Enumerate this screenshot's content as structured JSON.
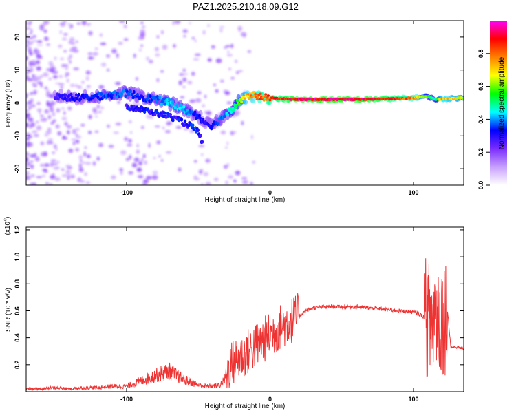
{
  "figure_title": "PAZ1.2025.210.18.09.G12",
  "chart_data": [
    {
      "type": "heatmap",
      "xlabel": "Height of straight line (km)",
      "ylabel": "Frequency (Hz)",
      "xlim": [
        -170,
        135
      ],
      "ylim": [
        -25,
        25
      ],
      "x_ticks": [
        -100,
        0,
        100
      ],
      "y_ticks": [
        -20,
        -10,
        0,
        10,
        20
      ],
      "colorbar": {
        "label": "Normalized spectral amplitude",
        "range": [
          0,
          1
        ],
        "ticks": [
          "0.0",
          "0.2",
          "0.4",
          "0.6",
          "0.8"
        ],
        "colors": [
          "#ffffff",
          "#c8a0ff",
          "#7a2cff",
          "#0000ff",
          "#00ffff",
          "#00ff00",
          "#ffff00",
          "#ff8000",
          "#ff0000",
          "#ff00ff"
        ]
      },
      "ridge": {
        "x": [
          -150,
          -130,
          -110,
          -100,
          -90,
          -80,
          -70,
          -60,
          -50,
          -45,
          -40,
          -35,
          -30,
          -25,
          -20,
          -15,
          -10,
          0,
          10,
          20,
          40,
          60,
          80,
          100,
          110,
          115,
          120,
          135
        ],
        "y": [
          2,
          1.5,
          2.5,
          3,
          2,
          1,
          0,
          -2,
          -4,
          -6,
          -7,
          -5,
          -3,
          -1,
          1,
          2,
          2,
          1.5,
          1.2,
          1,
          1,
          1,
          1.2,
          1.5,
          2,
          1,
          1.2,
          1.5
        ],
        "amplitude": [
          0.3,
          0.35,
          0.4,
          0.4,
          0.35,
          0.4,
          0.45,
          0.45,
          0.35,
          0.3,
          0.35,
          0.4,
          0.45,
          0.55,
          0.7,
          0.8,
          0.85,
          0.9,
          0.95,
          1.0,
          1.0,
          1.0,
          0.95,
          0.85,
          0.6,
          0.5,
          0.8,
          0.7
        ]
      },
      "lower_branch": {
        "x": [
          -100,
          -90,
          -80,
          -70,
          -60,
          -55,
          -50,
          -47
        ],
        "y": [
          -1,
          -2,
          -3,
          -4,
          -6,
          -7,
          -9,
          -12
        ]
      }
    },
    {
      "type": "line",
      "xlabel": "Height of straight line (km)",
      "ylabel": "SNR (10 * v/v)",
      "y_scale_label": "(x10",
      "y_scale_exp": "4",
      "xlim": [
        -170,
        135
      ],
      "ylim": [
        0,
        1.22
      ],
      "x_ticks": [
        -100,
        0,
        100
      ],
      "y_ticks": [
        0.2,
        0.4,
        0.6,
        0.8,
        1.0,
        1.2
      ],
      "series": [
        {
          "color": "#ee3333",
          "x": [
            -170,
            -160,
            -150,
            -140,
            -130,
            -120,
            -110,
            -100,
            -95,
            -90,
            -85,
            -80,
            -75,
            -70,
            -65,
            -60,
            -55,
            -50,
            -45,
            -40,
            -35,
            -32,
            -30,
            -28,
            -25,
            -20,
            -15,
            -10,
            -5,
            0,
            5,
            10,
            15,
            20,
            25,
            30,
            40,
            50,
            60,
            70,
            80,
            90,
            100,
            105,
            108,
            110,
            112,
            113,
            114,
            115,
            116,
            118,
            120,
            122,
            124,
            126,
            128,
            130,
            135
          ],
          "y": [
            0.02,
            0.02,
            0.03,
            0.02,
            0.03,
            0.03,
            0.04,
            0.04,
            0.06,
            0.08,
            0.1,
            0.12,
            0.14,
            0.15,
            0.12,
            0.09,
            0.07,
            0.05,
            0.04,
            0.04,
            0.05,
            0.08,
            0.15,
            0.2,
            0.22,
            0.26,
            0.3,
            0.34,
            0.38,
            0.42,
            0.46,
            0.5,
            0.53,
            0.56,
            0.6,
            0.62,
            0.63,
            0.63,
            0.63,
            0.62,
            0.61,
            0.6,
            0.59,
            0.57,
            0.55,
            0.55,
            0.5,
            0.5,
            0.55,
            0.6,
            0.57,
            0.57,
            0.57,
            0.57,
            0.57,
            0.33,
            0.33,
            0.33,
            0.32
          ]
        }
      ]
    }
  ]
}
